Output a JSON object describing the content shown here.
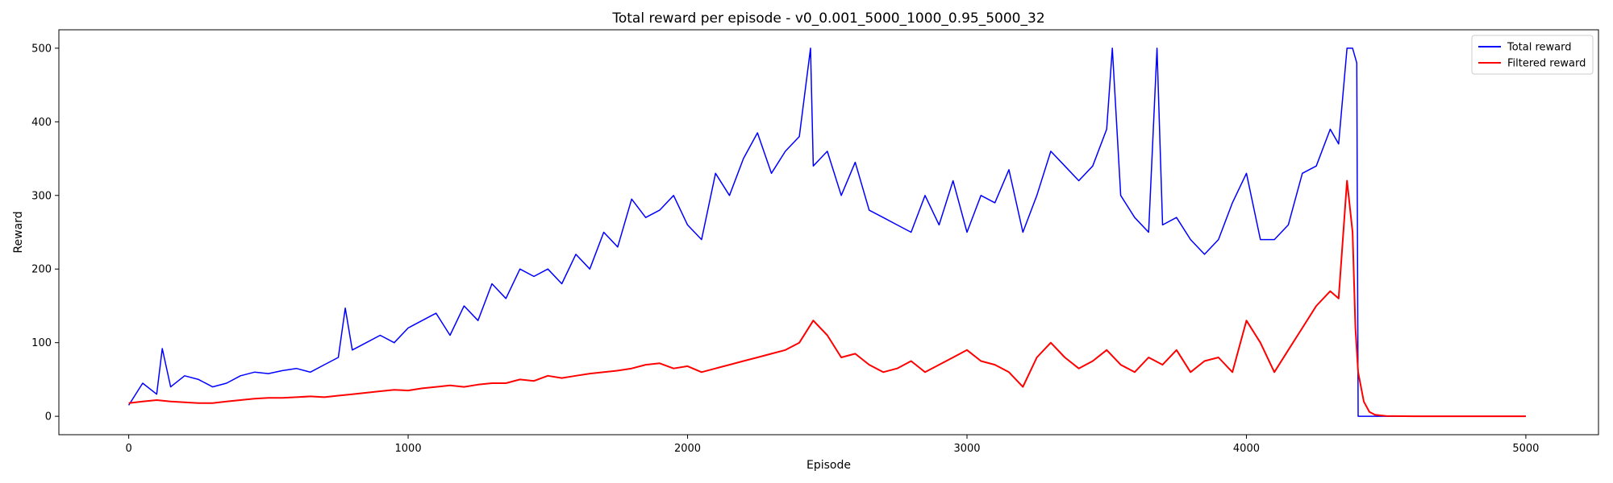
{
  "chart_data": {
    "type": "line",
    "title": "Total reward per episode - v0_0.001_5000_1000_0.95_5000_32",
    "xlabel": "Episode",
    "ylabel": "Reward",
    "xlim": [
      -250,
      5260
    ],
    "ylim": [
      -25,
      525
    ],
    "xticks": [
      0,
      1000,
      2000,
      3000,
      4000,
      5000
    ],
    "yticks": [
      0,
      100,
      200,
      300,
      400,
      500
    ],
    "legend_position": "top-right",
    "series": [
      {
        "name": "Total reward",
        "color": "#0000ff",
        "x": [
          0,
          50,
          100,
          120,
          150,
          200,
          250,
          300,
          350,
          400,
          450,
          500,
          550,
          600,
          650,
          700,
          750,
          775,
          800,
          850,
          900,
          950,
          1000,
          1050,
          1100,
          1150,
          1200,
          1250,
          1300,
          1350,
          1400,
          1450,
          1500,
          1550,
          1600,
          1650,
          1700,
          1750,
          1800,
          1850,
          1900,
          1950,
          2000,
          2050,
          2100,
          2150,
          2200,
          2250,
          2300,
          2350,
          2400,
          2440,
          2450,
          2500,
          2550,
          2600,
          2650,
          2700,
          2750,
          2800,
          2850,
          2900,
          2950,
          3000,
          3050,
          3100,
          3150,
          3200,
          3250,
          3300,
          3350,
          3400,
          3450,
          3500,
          3520,
          3550,
          3600,
          3650,
          3680,
          3700,
          3750,
          3800,
          3850,
          3900,
          3950,
          4000,
          4050,
          4100,
          4150,
          4200,
          4250,
          4300,
          4330,
          4360,
          4380,
          4395,
          4400,
          4450,
          4500,
          4600,
          4700,
          4800,
          4900,
          5000
        ],
        "y": [
          15,
          45,
          30,
          92,
          40,
          55,
          50,
          40,
          45,
          55,
          60,
          58,
          62,
          65,
          60,
          70,
          80,
          147,
          90,
          100,
          110,
          100,
          120,
          130,
          140,
          110,
          150,
          130,
          180,
          160,
          200,
          190,
          200,
          180,
          220,
          200,
          250,
          230,
          295,
          270,
          280,
          300,
          260,
          240,
          330,
          300,
          350,
          385,
          330,
          360,
          380,
          500,
          340,
          360,
          300,
          345,
          280,
          270,
          260,
          250,
          300,
          260,
          320,
          250,
          300,
          290,
          335,
          250,
          300,
          360,
          340,
          320,
          340,
          390,
          500,
          300,
          270,
          250,
          500,
          260,
          270,
          240,
          220,
          240,
          290,
          330,
          240,
          240,
          260,
          330,
          340,
          390,
          370,
          500,
          500,
          480,
          0,
          0,
          0,
          0,
          0,
          0,
          0,
          0
        ]
      },
      {
        "name": "Filtered reward",
        "color": "#ff0000",
        "x": [
          0,
          50,
          100,
          150,
          200,
          250,
          300,
          350,
          400,
          450,
          500,
          550,
          600,
          650,
          700,
          750,
          800,
          850,
          900,
          950,
          1000,
          1050,
          1100,
          1150,
          1200,
          1250,
          1300,
          1350,
          1400,
          1450,
          1500,
          1550,
          1600,
          1650,
          1700,
          1750,
          1800,
          1850,
          1900,
          1950,
          2000,
          2050,
          2100,
          2150,
          2200,
          2250,
          2300,
          2350,
          2400,
          2450,
          2500,
          2550,
          2600,
          2650,
          2700,
          2750,
          2800,
          2850,
          2900,
          2950,
          3000,
          3050,
          3100,
          3150,
          3200,
          3250,
          3300,
          3350,
          3400,
          3450,
          3500,
          3550,
          3600,
          3650,
          3700,
          3750,
          3800,
          3850,
          3900,
          3950,
          4000,
          4050,
          4100,
          4150,
          4200,
          4250,
          4300,
          4330,
          4360,
          4380,
          4390,
          4400,
          4420,
          4440,
          4460,
          4500,
          4600,
          4800,
          5000
        ],
        "y": [
          18,
          20,
          22,
          20,
          19,
          18,
          18,
          20,
          22,
          24,
          25,
          25,
          26,
          27,
          26,
          28,
          30,
          32,
          34,
          36,
          35,
          38,
          40,
          42,
          40,
          43,
          45,
          45,
          50,
          48,
          55,
          52,
          55,
          58,
          60,
          62,
          65,
          70,
          72,
          65,
          68,
          60,
          65,
          70,
          75,
          80,
          85,
          90,
          100,
          130,
          110,
          80,
          85,
          70,
          60,
          65,
          75,
          60,
          70,
          80,
          90,
          75,
          70,
          60,
          40,
          80,
          100,
          80,
          65,
          75,
          90,
          70,
          60,
          80,
          70,
          90,
          60,
          75,
          80,
          60,
          130,
          100,
          60,
          90,
          120,
          150,
          170,
          160,
          320,
          250,
          120,
          60,
          20,
          6,
          2,
          0.5,
          0,
          0,
          0
        ]
      }
    ]
  }
}
